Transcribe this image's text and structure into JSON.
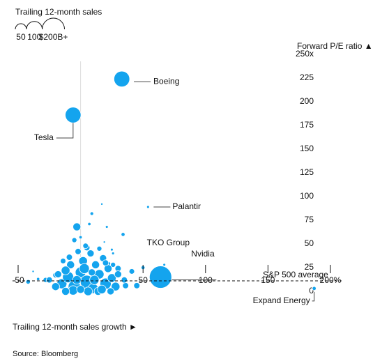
{
  "chart_data": {
    "type": "scatter",
    "legend_title": "Trailing 12-month sales",
    "size_legend": [
      50,
      100,
      {
        "value": 200,
        "label": "$200B+"
      }
    ],
    "y_label": "Forward P/E ratio ▲",
    "x_label": "Trailing 12-month sales growth ►",
    "source": "Source: Bloomberg",
    "color": "#14a4ee",
    "xlim": [
      -50,
      200
    ],
    "ylim": [
      0,
      250
    ],
    "xticks": [
      -50,
      50,
      100,
      150,
      {
        "value": 200,
        "label": "200%"
      }
    ],
    "yticks": [
      0,
      25,
      50,
      75,
      100,
      125,
      150,
      175,
      200,
      225,
      {
        "value": 250,
        "label": "250x"
      }
    ],
    "reference_line": {
      "value": 11,
      "label": "S&P 500 average"
    },
    "x": [
      33,
      -6,
      54,
      67,
      64,
      187,
      17,
      9,
      -3,
      7,
      21,
      34,
      25,
      19,
      -5,
      0,
      -42,
      -38,
      -34,
      -28,
      -20,
      41,
      50,
      45,
      36,
      30,
      22,
      26,
      5,
      -15,
      -10,
      -5,
      0,
      5,
      10,
      15,
      20,
      25,
      -8,
      2,
      12,
      18,
      -12,
      8,
      -2,
      22,
      28,
      -18,
      -20,
      30,
      6,
      -6,
      14,
      3,
      -3,
      11,
      17,
      -12,
      24,
      35,
      -25,
      0,
      9,
      -9,
      15,
      4,
      20,
      -14,
      26
    ],
    "values": [
      224,
      186,
      89,
      28,
      15,
      3,
      92,
      82,
      68,
      71,
      68,
      60,
      44,
      52,
      54,
      57,
      10,
      21,
      13,
      12,
      17,
      21,
      25,
      6,
      6,
      24,
      29,
      40,
      46,
      8,
      15,
      5,
      20,
      10,
      3,
      18,
      8,
      14,
      28,
      32,
      28,
      35,
      22,
      40,
      42,
      24,
      5,
      18,
      5,
      18,
      0,
      1,
      0,
      24,
      12,
      12,
      2,
      0,
      0,
      12,
      12,
      2,
      20,
      36,
      45,
      48,
      30,
      32,
      28
    ],
    "sizes": [
      100,
      100,
      3,
      3,
      200,
      6,
      2,
      5,
      25,
      4,
      3,
      6,
      3,
      2,
      10,
      4,
      8,
      1,
      4,
      10,
      12,
      12,
      6,
      15,
      15,
      15,
      10,
      3,
      15,
      40,
      50,
      60,
      45,
      70,
      40,
      35,
      50,
      30,
      25,
      30,
      25,
      20,
      30,
      20,
      15,
      25,
      30,
      20,
      25,
      20,
      30,
      35,
      25,
      40,
      30,
      35,
      30,
      25,
      20,
      15,
      15,
      25,
      20,
      15,
      10,
      12,
      15,
      12,
      10
    ],
    "labels": [
      {
        "text": "Boeing",
        "index": 0
      },
      {
        "text": "Tesla",
        "index": 1
      },
      {
        "text": "Palantir",
        "index": 2
      },
      {
        "text": "TKO Group",
        "index": 3
      },
      {
        "text": "Nvidia",
        "index": 4
      },
      {
        "text": "Expand Energy",
        "index": 5
      }
    ]
  }
}
